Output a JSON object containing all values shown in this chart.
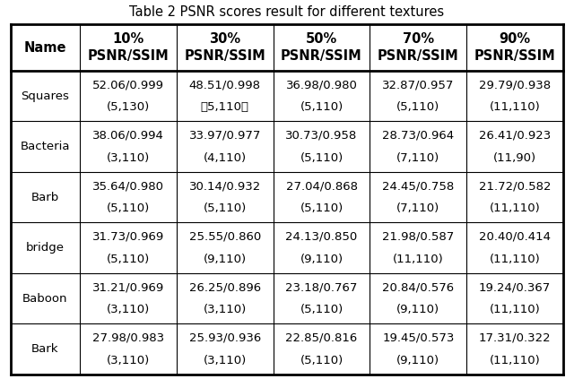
{
  "title": "Table 2 PSNR scores result for different textures",
  "col_headers": [
    "Name",
    "10%\nPSNR/SSIM",
    "30%\nPSNR/SSIM",
    "50%\nPSNR/SSIM",
    "70%\nPSNR/SSIM",
    "90%\nPSNR/SSIM"
  ],
  "rows": [
    {
      "name": "Squares",
      "line1": [
        "52.06/0.999",
        "48.51/0.998",
        "36.98/0.980",
        "32.87/0.957",
        "29.79/0.938"
      ],
      "line2": [
        "(5,130)",
        "（5,110）",
        "(5,110)",
        "(5,110)",
        "(11,110)"
      ]
    },
    {
      "name": "Bacteria",
      "line1": [
        "38.06/0.994",
        "33.97/0.977",
        "30.73/0.958",
        "28.73/0.964",
        "26.41/0.923"
      ],
      "line2": [
        "(3,110)",
        "(4,110)",
        "(5,110)",
        "(7,110)",
        "(11,90)"
      ]
    },
    {
      "name": "Barb",
      "line1": [
        "35.64/0.980",
        "30.14/0.932",
        "27.04/0.868",
        "24.45/0.758",
        "21.72/0.582"
      ],
      "line2": [
        "(5,110)",
        "(5,110)",
        "(5,110)",
        "(7,110)",
        "(11,110)"
      ]
    },
    {
      "name": "bridge",
      "line1": [
        "31.73/0.969",
        "25.55/0.860",
        "24.13/0.850",
        "21.98/0.587",
        "20.40/0.414"
      ],
      "line2": [
        "(5,110)",
        "(9,110)",
        "(9,110)",
        "(11,110)",
        "(11,110)"
      ]
    },
    {
      "name": "Baboon",
      "line1": [
        "31.21/0.969",
        "26.25/0.896",
        "23.18/0.767",
        "20.84/0.576",
        "19.24/0.367"
      ],
      "line2": [
        "(3,110)",
        "(3,110)",
        "(5,110)",
        "(9,110)",
        "(11,110)"
      ]
    },
    {
      "name": "Bark",
      "line1": [
        "27.98/0.983",
        "25.93/0.936",
        "22.85/0.816",
        "19.45/0.573",
        "17.31/0.322"
      ],
      "line2": [
        "(3,110)",
        "(3,110)",
        "(5,110)",
        "(9,110)",
        "(11,110)"
      ]
    }
  ],
  "bg_color": "#ffffff",
  "text_color": "#000000",
  "header_fontsize": 10.5,
  "cell_fontsize": 9.5,
  "title_fontsize": 10.5,
  "line_color": "#000000"
}
